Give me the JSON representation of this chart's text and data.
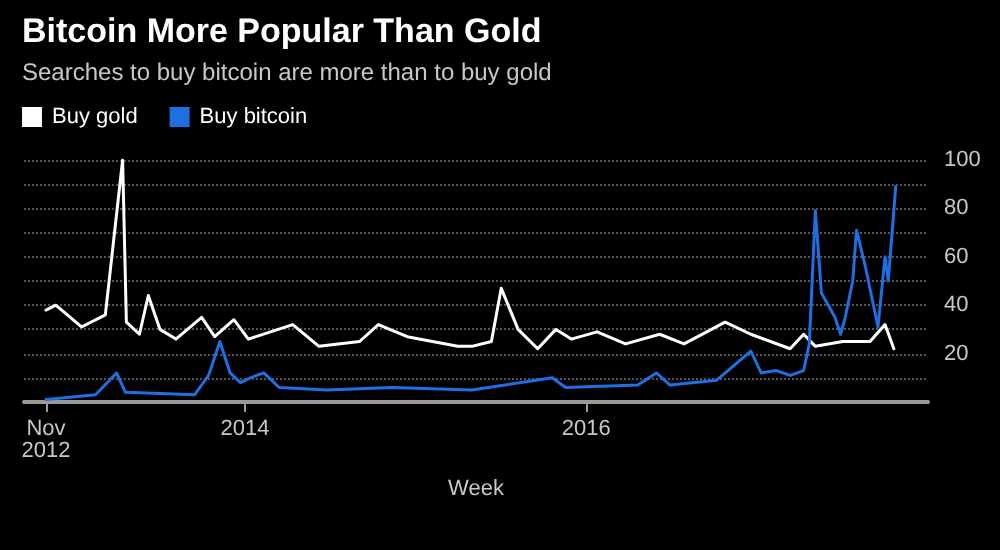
{
  "chart_data": {
    "type": "line",
    "title": "Bitcoin More Popular Than Gold",
    "subtitle": "Searches to buy bitcoin are more than to buy gold",
    "xlabel": "Week",
    "xlim": [
      "2012-09-15",
      "2018-01-01"
    ],
    "xticks": [
      {
        "value": "2012-11-01",
        "label": "Nov 2012"
      },
      {
        "value": "2014-01-01",
        "label": "2014"
      },
      {
        "value": "2016-01-01",
        "label": "2016"
      }
    ],
    "ylim": [
      0,
      100
    ],
    "yticks": [
      {
        "value": 10,
        "label": null
      },
      20,
      {
        "value": 30,
        "label": null
      },
      40,
      {
        "value": 50,
        "label": null
      },
      60,
      {
        "value": 70,
        "label": null
      },
      80,
      {
        "value": 90,
        "label": null
      },
      100
    ],
    "grid": "y",
    "legend": "top left",
    "series": [
      {
        "name": "Buy gold",
        "color": "#ffffff",
        "x": [
          "2012-11-01",
          "2012-11-22",
          "2013-01-16",
          "2013-03-08",
          "2013-04-14",
          "2013-04-22",
          "2013-05-20",
          "2013-06-08",
          "2013-07-03",
          "2013-08-06",
          "2013-09-30",
          "2013-10-28",
          "2013-12-08",
          "2014-01-08",
          "2014-04-13",
          "2014-06-08",
          "2014-09-03",
          "2014-10-13",
          "2014-12-14",
          "2015-04-01",
          "2015-05-01",
          "2015-06-12",
          "2015-07-03",
          "2015-08-08",
          "2015-09-19",
          "2015-10-28",
          "2015-11-30",
          "2016-01-24",
          "2016-03-25",
          "2016-06-06",
          "2016-07-28",
          "2016-10-24",
          "2016-12-18",
          "2017-03-12",
          "2017-04-10",
          "2017-05-05",
          "2017-07-03",
          "2017-08-30",
          "2017-10-01",
          "2017-10-20"
        ],
        "values": [
          38,
          40,
          31,
          36,
          100,
          33,
          28,
          44,
          30,
          26,
          35,
          27,
          34,
          26,
          32,
          23,
          25,
          32,
          27,
          23,
          23,
          25,
          47,
          30,
          22,
          30,
          26,
          29,
          24,
          28,
          24,
          33,
          28,
          22,
          28,
          23,
          25,
          25,
          32,
          22
        ]
      },
      {
        "name": "Buy bitcoin",
        "color": "#1f6fe0",
        "x": [
          "2012-11-01",
          "2013-02-15",
          "2013-04-01",
          "2013-04-20",
          "2013-09-15",
          "2013-10-15",
          "2013-11-08",
          "2013-11-30",
          "2013-12-22",
          "2014-01-12",
          "2014-02-10",
          "2014-03-15",
          "2014-06-24",
          "2014-11-12",
          "2015-05-01",
          "2015-10-20",
          "2015-11-18",
          "2016-04-20",
          "2016-05-30",
          "2016-06-28",
          "2016-10-06",
          "2016-12-18",
          "2017-01-09",
          "2017-02-10",
          "2017-03-12",
          "2017-04-10",
          "2017-04-22",
          "2017-05-05",
          "2017-05-18",
          "2017-06-16",
          "2017-06-28",
          "2017-07-08",
          "2017-07-24",
          "2017-08-01",
          "2017-08-20",
          "2017-09-16",
          "2017-10-01",
          "2017-10-08",
          "2017-10-24"
        ],
        "values": [
          1,
          3,
          12,
          4,
          3,
          11,
          25,
          12,
          8,
          10,
          12,
          6,
          5,
          6,
          5,
          10,
          6,
          7,
          12,
          7,
          9,
          21,
          12,
          13,
          11,
          13,
          24,
          79,
          45,
          35,
          28,
          35,
          50,
          71,
          56,
          31,
          60,
          50,
          89
        ]
      }
    ]
  }
}
